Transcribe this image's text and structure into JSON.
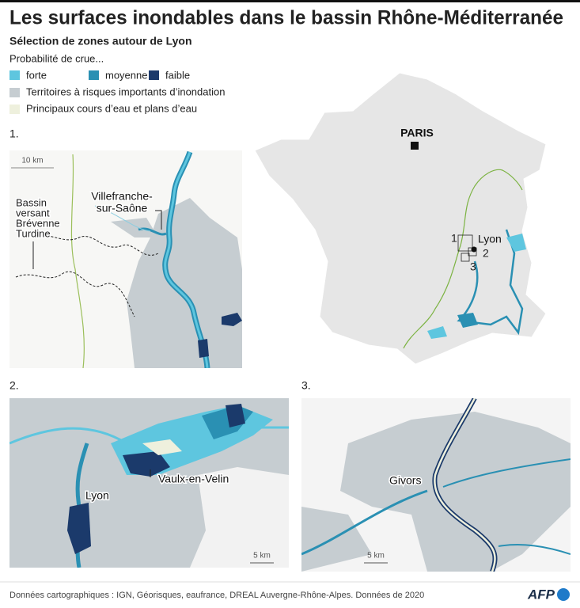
{
  "header": {
    "title": "Les surfaces inondables dans le bassin Rhône-Méditerranée",
    "subtitle": "Sélection de zones autour de Lyon"
  },
  "legend": {
    "heading": "Probabilité de crue...",
    "probability": [
      {
        "label": "forte",
        "color": "#5ec6df"
      },
      {
        "label": "moyenne",
        "color": "#2a90b3"
      },
      {
        "label": "faible",
        "color": "#1b3a6b"
      }
    ],
    "areas": [
      {
        "label": "Territoires à risques importants d’inondation",
        "color": "#c6cdd1"
      },
      {
        "label": "Principaux cours d’eau et plans d’eau",
        "color": "#eef0dd"
      }
    ]
  },
  "maps": [
    {
      "number": "1.",
      "scale": "10 km",
      "labels": [
        {
          "lines": [
            "Villefranche-",
            "sur-Saône"
          ]
        },
        {
          "lines": [
            "Bassin",
            "versant",
            "Brévenne",
            "Turdine"
          ]
        }
      ]
    },
    {
      "number": "2.",
      "scale": "5 km",
      "labels": [
        {
          "lines": [
            "Lyon"
          ]
        },
        {
          "lines": [
            "Vaulx-en-Velin"
          ]
        }
      ]
    },
    {
      "number": "3.",
      "scale": "5 km",
      "labels": [
        {
          "lines": [
            "Givors"
          ]
        }
      ]
    }
  ],
  "overview": {
    "paris": "PARIS",
    "lyon": "Lyon",
    "insets": [
      "1",
      "2",
      "3"
    ]
  },
  "footer": {
    "source": "Données cartographiques : IGN, Géorisques, eaufrance, DREAL Auvergne-Rhône-Alpes. Données de 2020",
    "logo": "AFP"
  }
}
